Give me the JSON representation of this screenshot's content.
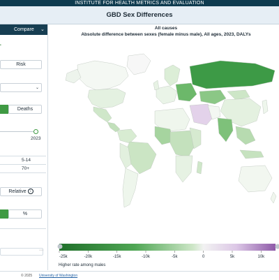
{
  "header": {
    "org": "INSTITUTE FOR HEALTH METRICS AND EVALUATION"
  },
  "app": {
    "title": "GBD Sex Differences"
  },
  "sidebar": {
    "compare_label": "Compare",
    "risk_button": "Risk",
    "deaths_button": "Deaths",
    "year_value": "2023",
    "age_5_14": "5-14",
    "age_70_plus": "70+",
    "relative_label": "Relative",
    "percent_label": "%"
  },
  "map": {
    "title": "All causes",
    "subtitle": "Absolute difference between sexes (female minus male), All ages, 2023, DALYs",
    "colors": {
      "male_dark": "#1f6f2a",
      "mid": "#f2f2f2",
      "female_dark": "#8e5aa8"
    }
  },
  "legend": {
    "ticks": [
      {
        "value": -25000,
        "label": "-25k"
      },
      {
        "value": -20000,
        "label": "-20k"
      },
      {
        "value": -15000,
        "label": "-15k"
      },
      {
        "value": -10000,
        "label": "-10k"
      },
      {
        "value": -5000,
        "label": "-5k"
      },
      {
        "value": 0,
        "label": "0"
      },
      {
        "value": 5000,
        "label": "5k"
      },
      {
        "value": 10000,
        "label": "10k"
      }
    ],
    "range": [
      -25000,
      12500
    ],
    "caption": "Higher rate among males"
  },
  "footer": {
    "copyright": "© 2025",
    "link": "University of Washington"
  }
}
